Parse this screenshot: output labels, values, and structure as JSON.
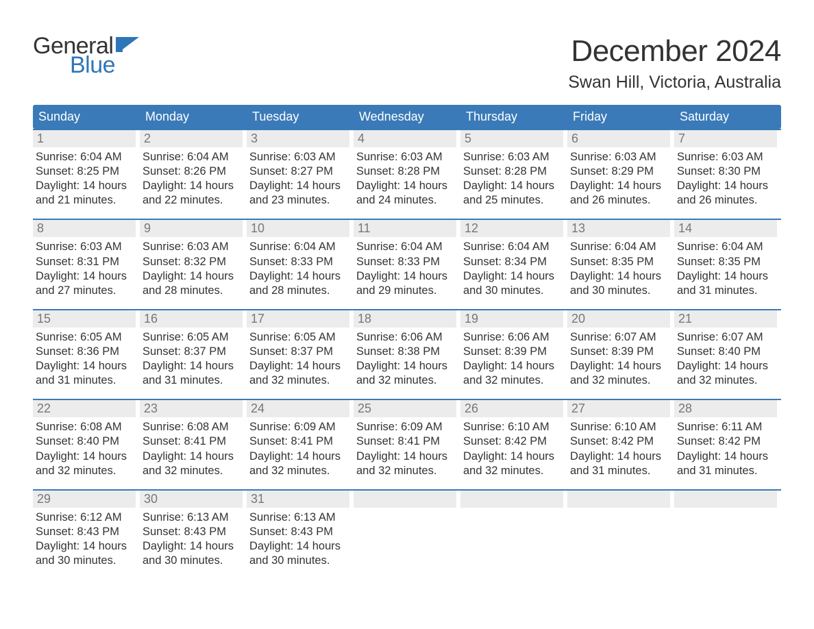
{
  "logo": {
    "text_general": "General",
    "text_blue": "Blue",
    "brand_color": "#2f76b8"
  },
  "title": "December 2024",
  "location": "Swan Hill, Victoria, Australia",
  "colors": {
    "header_bg": "#3a7ab8",
    "header_text": "#ffffff",
    "daynum_bg": "#ececec",
    "daynum_text": "#777777",
    "body_text": "#333333",
    "week_border": "#3a7ab8",
    "page_bg": "#ffffff"
  },
  "type": "calendar-table",
  "weekdays": [
    "Sunday",
    "Monday",
    "Tuesday",
    "Wednesday",
    "Thursday",
    "Friday",
    "Saturday"
  ],
  "days": [
    {
      "n": 1,
      "sunrise": "6:04 AM",
      "sunset": "8:25 PM",
      "dl_h": 14,
      "dl_m": 21
    },
    {
      "n": 2,
      "sunrise": "6:04 AM",
      "sunset": "8:26 PM",
      "dl_h": 14,
      "dl_m": 22
    },
    {
      "n": 3,
      "sunrise": "6:03 AM",
      "sunset": "8:27 PM",
      "dl_h": 14,
      "dl_m": 23
    },
    {
      "n": 4,
      "sunrise": "6:03 AM",
      "sunset": "8:28 PM",
      "dl_h": 14,
      "dl_m": 24
    },
    {
      "n": 5,
      "sunrise": "6:03 AM",
      "sunset": "8:28 PM",
      "dl_h": 14,
      "dl_m": 25
    },
    {
      "n": 6,
      "sunrise": "6:03 AM",
      "sunset": "8:29 PM",
      "dl_h": 14,
      "dl_m": 26
    },
    {
      "n": 7,
      "sunrise": "6:03 AM",
      "sunset": "8:30 PM",
      "dl_h": 14,
      "dl_m": 26
    },
    {
      "n": 8,
      "sunrise": "6:03 AM",
      "sunset": "8:31 PM",
      "dl_h": 14,
      "dl_m": 27
    },
    {
      "n": 9,
      "sunrise": "6:03 AM",
      "sunset": "8:32 PM",
      "dl_h": 14,
      "dl_m": 28
    },
    {
      "n": 10,
      "sunrise": "6:04 AM",
      "sunset": "8:33 PM",
      "dl_h": 14,
      "dl_m": 28
    },
    {
      "n": 11,
      "sunrise": "6:04 AM",
      "sunset": "8:33 PM",
      "dl_h": 14,
      "dl_m": 29
    },
    {
      "n": 12,
      "sunrise": "6:04 AM",
      "sunset": "8:34 PM",
      "dl_h": 14,
      "dl_m": 30
    },
    {
      "n": 13,
      "sunrise": "6:04 AM",
      "sunset": "8:35 PM",
      "dl_h": 14,
      "dl_m": 30
    },
    {
      "n": 14,
      "sunrise": "6:04 AM",
      "sunset": "8:35 PM",
      "dl_h": 14,
      "dl_m": 31
    },
    {
      "n": 15,
      "sunrise": "6:05 AM",
      "sunset": "8:36 PM",
      "dl_h": 14,
      "dl_m": 31
    },
    {
      "n": 16,
      "sunrise": "6:05 AM",
      "sunset": "8:37 PM",
      "dl_h": 14,
      "dl_m": 31
    },
    {
      "n": 17,
      "sunrise": "6:05 AM",
      "sunset": "8:37 PM",
      "dl_h": 14,
      "dl_m": 32
    },
    {
      "n": 18,
      "sunrise": "6:06 AM",
      "sunset": "8:38 PM",
      "dl_h": 14,
      "dl_m": 32
    },
    {
      "n": 19,
      "sunrise": "6:06 AM",
      "sunset": "8:39 PM",
      "dl_h": 14,
      "dl_m": 32
    },
    {
      "n": 20,
      "sunrise": "6:07 AM",
      "sunset": "8:39 PM",
      "dl_h": 14,
      "dl_m": 32
    },
    {
      "n": 21,
      "sunrise": "6:07 AM",
      "sunset": "8:40 PM",
      "dl_h": 14,
      "dl_m": 32
    },
    {
      "n": 22,
      "sunrise": "6:08 AM",
      "sunset": "8:40 PM",
      "dl_h": 14,
      "dl_m": 32
    },
    {
      "n": 23,
      "sunrise": "6:08 AM",
      "sunset": "8:41 PM",
      "dl_h": 14,
      "dl_m": 32
    },
    {
      "n": 24,
      "sunrise": "6:09 AM",
      "sunset": "8:41 PM",
      "dl_h": 14,
      "dl_m": 32
    },
    {
      "n": 25,
      "sunrise": "6:09 AM",
      "sunset": "8:41 PM",
      "dl_h": 14,
      "dl_m": 32
    },
    {
      "n": 26,
      "sunrise": "6:10 AM",
      "sunset": "8:42 PM",
      "dl_h": 14,
      "dl_m": 32
    },
    {
      "n": 27,
      "sunrise": "6:10 AM",
      "sunset": "8:42 PM",
      "dl_h": 14,
      "dl_m": 31
    },
    {
      "n": 28,
      "sunrise": "6:11 AM",
      "sunset": "8:42 PM",
      "dl_h": 14,
      "dl_m": 31
    },
    {
      "n": 29,
      "sunrise": "6:12 AM",
      "sunset": "8:43 PM",
      "dl_h": 14,
      "dl_m": 30
    },
    {
      "n": 30,
      "sunrise": "6:13 AM",
      "sunset": "8:43 PM",
      "dl_h": 14,
      "dl_m": 30
    },
    {
      "n": 31,
      "sunrise": "6:13 AM",
      "sunset": "8:43 PM",
      "dl_h": 14,
      "dl_m": 30
    }
  ],
  "labels": {
    "sunrise_prefix": "Sunrise: ",
    "sunset_prefix": "Sunset: ",
    "daylight_prefix": "Daylight: ",
    "hours_word": " hours",
    "and_word": "and ",
    "minutes_word": " minutes."
  },
  "layout": {
    "first_day_weekday_index": 0,
    "columns": 7,
    "rows": 5,
    "font_family": "Arial",
    "title_fontsize": 44,
    "location_fontsize": 25,
    "weekday_fontsize": 18,
    "daynum_fontsize": 18,
    "body_fontsize": 16.5
  }
}
